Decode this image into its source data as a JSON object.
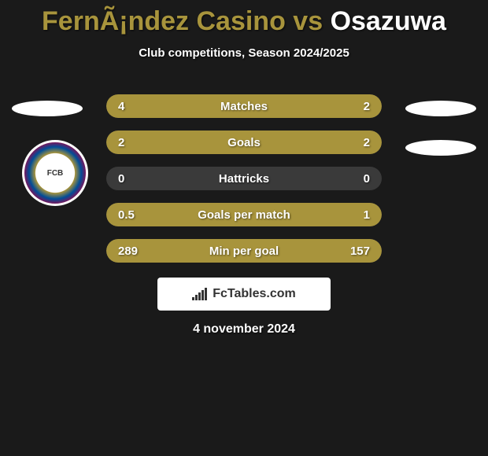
{
  "title": {
    "left": "FernÃ¡ndez Casino",
    "vs": "vs",
    "right": "Osazuwa"
  },
  "subtitle": "Club competitions, Season 2024/2025",
  "colors": {
    "accent": "#a8943c",
    "background": "#1a1a1a",
    "row_bg": "#3a3a3a",
    "text": "#ffffff"
  },
  "stats": [
    {
      "label": "Matches",
      "left_value": "4",
      "right_value": "2",
      "left_fill_pct": 66.7,
      "right_fill_pct": 33.3
    },
    {
      "label": "Goals",
      "left_value": "2",
      "right_value": "2",
      "left_fill_pct": 50,
      "right_fill_pct": 50
    },
    {
      "label": "Hattricks",
      "left_value": "0",
      "right_value": "0",
      "left_fill_pct": 0,
      "right_fill_pct": 0
    },
    {
      "label": "Goals per match",
      "left_value": "0.5",
      "right_value": "1",
      "left_fill_pct": 33.3,
      "right_fill_pct": 66.7
    },
    {
      "label": "Min per goal",
      "left_value": "289",
      "right_value": "157",
      "left_fill_pct": 64.8,
      "right_fill_pct": 35.2
    }
  ],
  "footer": {
    "brand": "FcTables.com"
  },
  "date": "4 november 2024",
  "badge": {
    "text": "FCB"
  }
}
